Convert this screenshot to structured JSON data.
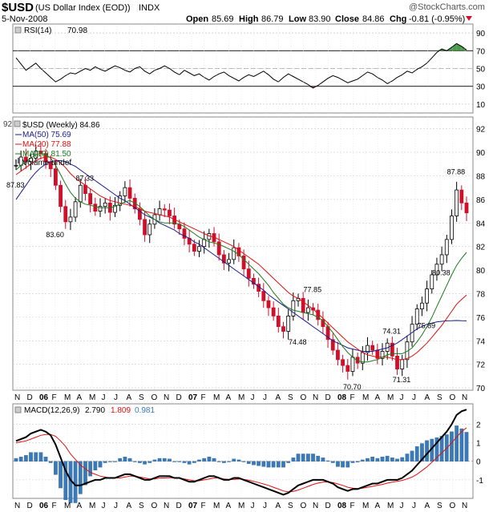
{
  "header": {
    "symbol": "$USD",
    "name": "(US Dollar Index (EOD))",
    "exchange": "INDX",
    "copyright": "@StockCharts.com",
    "date": "5-Nov-2008",
    "open_label": "Open",
    "open": "85.69",
    "high_label": "High",
    "high": "86.79",
    "low_label": "Low",
    "low": "83.90",
    "close_label": "Close",
    "close": "84.86",
    "chg_label": "Chg",
    "chg": "-0.81 (-0.95%)"
  },
  "rsi": {
    "label": "RSI(14)",
    "value": "70.98",
    "ticks": [
      "90",
      "70",
      "50",
      "30",
      "10"
    ],
    "levels": [
      70,
      30
    ],
    "color_over": "#4a9a4a",
    "color_under": "#a05050",
    "values": [
      62,
      55,
      48,
      52,
      56,
      50,
      45,
      40,
      35,
      38,
      42,
      45,
      44,
      47,
      50,
      48,
      52,
      49,
      47,
      50,
      53,
      51,
      48,
      46,
      50,
      52,
      47,
      44,
      48,
      50,
      53,
      50,
      46,
      43,
      48,
      45,
      42,
      44,
      40,
      37,
      41,
      44,
      46,
      42,
      39,
      36,
      40,
      43,
      41,
      44,
      47,
      43,
      38,
      35,
      40,
      44,
      41,
      38,
      35,
      32,
      28,
      31,
      35,
      39,
      42,
      40,
      37,
      34,
      36,
      38,
      42,
      46,
      44,
      40,
      37,
      33,
      36,
      40,
      43,
      47,
      45,
      49,
      52,
      56,
      62,
      68,
      72,
      70,
      74,
      78,
      75,
      71
    ]
  },
  "main": {
    "legend_title": "$USD (Weekly) 84.86",
    "ma50_label": "MA(50) 75.69",
    "ma20_label": "MA(20) 77.88",
    "ma10_label": "MA(10) 81.50",
    "volume_label": "Volume undef",
    "colors": {
      "ma50": "#1a1a8c",
      "ma20": "#e01010",
      "ma10": "#1a7a1a",
      "up": "#000000",
      "down": "#d0102a"
    },
    "ticks": [
      "92",
      "90",
      "88",
      "86",
      "84",
      "82",
      "80",
      "78",
      "76",
      "74",
      "72",
      "70"
    ],
    "annotations": [
      {
        "text": "87.83",
        "x": 0,
        "y": 87.83
      },
      {
        "text": "83.60",
        "x": 8,
        "y": 83.6
      },
      {
        "text": "87.33",
        "x": 14,
        "y": 87.33
      },
      {
        "text": "77.85",
        "x": 60,
        "y": 77.85
      },
      {
        "text": "74.48",
        "x": 57,
        "y": 74.48
      },
      {
        "text": "70.70",
        "x": 68,
        "y": 70.7
      },
      {
        "text": "74.31",
        "x": 76,
        "y": 74.31
      },
      {
        "text": "71.31",
        "x": 78,
        "y": 71.31
      },
      {
        "text": "75.89",
        "x": 83,
        "y": 75.89
      },
      {
        "text": "80.38",
        "x": 86,
        "y": 80.38
      },
      {
        "text": "87.88",
        "x": 89,
        "y": 87.88
      }
    ]
  },
  "chart_data": {
    "type": "line",
    "title": "$USD (Weekly) 84.86",
    "ylim": [
      69.8,
      93.0
    ],
    "month_labels": [
      "N",
      "D",
      "06",
      "F",
      "M",
      "A",
      "M",
      "J",
      "J",
      "A",
      "S",
      "O",
      "N",
      "D",
      "07",
      "F",
      "M",
      "A",
      "M",
      "J",
      "J",
      "A",
      "S",
      "O",
      "N",
      "D",
      "08",
      "F",
      "M",
      "A",
      "M",
      "J",
      "J",
      "A",
      "S",
      "O",
      "N"
    ],
    "closes": [
      88.9,
      89.6,
      89.2,
      89.5,
      90.1,
      89.9,
      89.2,
      88.6,
      87.2,
      85.4,
      84.1,
      84.5,
      85.8,
      87.2,
      86.5,
      85.6,
      85.0,
      85.4,
      85.7,
      84.9,
      85.5,
      86.3,
      87.0,
      86.1,
      85.2,
      84.3,
      83.0,
      83.9,
      84.7,
      85.2,
      85.1,
      84.6,
      83.9,
      83.5,
      82.7,
      82.2,
      81.6,
      82.0,
      82.6,
      83.1,
      82.4,
      81.3,
      80.6,
      80.9,
      81.9,
      81.2,
      80.1,
      79.3,
      78.8,
      78.2,
      77.4,
      76.8,
      76.1,
      75.2,
      74.8,
      76.1,
      77.4,
      77.6,
      76.4,
      76.8,
      76.6,
      75.8,
      75.2,
      74.1,
      73.2,
      72.4,
      71.9,
      71.4,
      72.6,
      72.1,
      73.0,
      73.6,
      73.2,
      72.5,
      73.1,
      73.8,
      72.7,
      71.6,
      72.4,
      73.9,
      75.4,
      76.7,
      77.2,
      78.4,
      79.6,
      80.5,
      81.3,
      82.6,
      84.6,
      86.8,
      85.7,
      84.86
    ],
    "ma50": [
      86.0,
      86.6,
      87.2,
      87.8,
      88.3,
      88.7,
      89.0,
      89.2,
      89.3,
      89.3,
      89.2,
      89.0,
      88.8,
      88.5,
      88.2,
      87.9,
      87.6,
      87.3,
      87.0,
      86.7,
      86.4,
      86.1,
      85.9,
      85.6,
      85.3,
      85.0,
      84.7,
      84.5,
      84.3,
      84.0,
      83.8,
      83.6,
      83.4,
      83.1,
      82.9,
      82.7,
      82.4,
      82.2,
      81.9,
      81.6,
      81.3,
      81.0,
      80.7,
      80.4,
      80.1,
      79.8,
      79.5,
      79.2,
      78.9,
      78.6,
      78.3,
      77.9,
      77.6,
      77.3,
      77.0,
      76.7,
      76.4,
      76.1,
      75.8,
      75.5,
      75.2,
      74.9,
      74.6,
      74.3,
      74.0,
      73.8,
      73.6,
      73.4,
      73.3,
      73.2,
      73.1,
      73.1,
      73.1,
      73.2,
      73.3,
      73.4,
      73.6,
      73.8,
      74.1,
      74.4,
      74.7,
      75.0,
      75.2,
      75.4,
      75.5,
      75.6,
      75.65,
      75.69,
      75.7,
      75.72,
      75.7,
      75.69
    ],
    "ma20": [
      88.1,
      88.4,
      88.7,
      89.0,
      89.3,
      89.5,
      89.6,
      89.6,
      89.4,
      89.1,
      88.7,
      88.2,
      87.8,
      87.5,
      87.2,
      86.9,
      86.6,
      86.3,
      86.1,
      85.9,
      85.8,
      85.7,
      85.6,
      85.5,
      85.4,
      85.2,
      85.0,
      84.9,
      84.8,
      84.7,
      84.6,
      84.5,
      84.3,
      84.1,
      83.9,
      83.7,
      83.5,
      83.3,
      83.1,
      82.9,
      82.8,
      82.6,
      82.4,
      82.2,
      82.0,
      81.7,
      81.4,
      81.1,
      80.8,
      80.5,
      80.1,
      79.7,
      79.3,
      78.9,
      78.5,
      78.1,
      77.8,
      77.6,
      77.3,
      77.0,
      76.7,
      76.3,
      75.9,
      75.5,
      75.1,
      74.7,
      74.3,
      73.9,
      73.6,
      73.3,
      73.0,
      72.8,
      72.7,
      72.6,
      72.6,
      72.6,
      72.5,
      72.4,
      72.4,
      72.5,
      72.7,
      73.0,
      73.4,
      73.8,
      74.3,
      74.8,
      75.3,
      75.9,
      76.5,
      77.1,
      77.5,
      77.88
    ],
    "ma10": [
      88.5,
      88.9,
      89.2,
      89.5,
      89.8,
      89.9,
      89.8,
      89.5,
      88.9,
      88.1,
      87.3,
      86.6,
      86.1,
      85.8,
      85.6,
      85.5,
      85.4,
      85.3,
      85.3,
      85.3,
      85.4,
      85.6,
      85.8,
      85.9,
      85.7,
      85.4,
      85.0,
      84.6,
      84.3,
      84.1,
      84.0,
      84.0,
      84.0,
      83.9,
      83.7,
      83.4,
      83.1,
      82.8,
      82.6,
      82.4,
      82.3,
      82.2,
      82.0,
      81.8,
      81.6,
      81.3,
      80.9,
      80.5,
      80.1,
      79.7,
      79.2,
      78.7,
      78.1,
      77.6,
      77.1,
      76.8,
      76.6,
      76.5,
      76.4,
      76.3,
      76.2,
      76.0,
      75.7,
      75.2,
      74.7,
      74.1,
      73.5,
      73.0,
      72.6,
      72.3,
      72.2,
      72.2,
      72.3,
      72.4,
      72.6,
      72.8,
      72.9,
      72.9,
      72.9,
      73.1,
      73.4,
      73.9,
      74.5,
      75.2,
      76.0,
      76.9,
      77.8,
      78.7,
      79.6,
      80.4,
      81.0,
      81.5
    ]
  },
  "macd": {
    "label": "MACD(12,26,9)",
    "macd_value": "2.790",
    "signal_value": "1.809",
    "hist_value": "0.981",
    "ticks": [
      "2",
      "1",
      "0",
      "-1"
    ],
    "colors": {
      "macd": "#000000",
      "signal": "#e01010",
      "hist": "#3a7ab8"
    },
    "macd_line": [
      1.1,
      1.2,
      1.3,
      1.5,
      1.6,
      1.7,
      1.6,
      1.4,
      0.9,
      0.2,
      -0.5,
      -1.0,
      -1.3,
      -1.3,
      -1.2,
      -1.1,
      -1.0,
      -1.0,
      -0.9,
      -0.9,
      -0.9,
      -0.8,
      -0.7,
      -0.7,
      -0.8,
      -0.9,
      -1.0,
      -1.0,
      -0.9,
      -0.8,
      -0.8,
      -0.8,
      -0.9,
      -0.9,
      -1.0,
      -1.1,
      -1.1,
      -1.0,
      -0.9,
      -0.8,
      -0.8,
      -0.9,
      -1.0,
      -1.0,
      -0.9,
      -0.9,
      -1.0,
      -1.1,
      -1.2,
      -1.3,
      -1.4,
      -1.5,
      -1.6,
      -1.7,
      -1.8,
      -1.7,
      -1.5,
      -1.3,
      -1.2,
      -1.1,
      -1.0,
      -1.0,
      -1.0,
      -1.1,
      -1.2,
      -1.4,
      -1.5,
      -1.6,
      -1.5,
      -1.5,
      -1.4,
      -1.3,
      -1.2,
      -1.2,
      -1.1,
      -1.0,
      -1.0,
      -1.0,
      -0.9,
      -0.7,
      -0.5,
      -0.2,
      0.1,
      0.4,
      0.7,
      1.0,
      1.3,
      1.6,
      2.0,
      2.5,
      2.7,
      2.79
    ],
    "signal_line": [
      1.0,
      1.05,
      1.1,
      1.2,
      1.3,
      1.4,
      1.45,
      1.45,
      1.35,
      1.1,
      0.8,
      0.4,
      0.1,
      -0.2,
      -0.4,
      -0.6,
      -0.7,
      -0.8,
      -0.85,
      -0.9,
      -0.9,
      -0.9,
      -0.85,
      -0.8,
      -0.8,
      -0.85,
      -0.9,
      -0.95,
      -0.95,
      -0.9,
      -0.9,
      -0.88,
      -0.9,
      -0.9,
      -0.95,
      -1.0,
      -1.05,
      -1.05,
      -1.0,
      -0.95,
      -0.9,
      -0.9,
      -0.95,
      -0.98,
      -0.98,
      -0.95,
      -0.98,
      -1.02,
      -1.08,
      -1.15,
      -1.22,
      -1.3,
      -1.4,
      -1.5,
      -1.6,
      -1.65,
      -1.62,
      -1.55,
      -1.45,
      -1.35,
      -1.25,
      -1.18,
      -1.12,
      -1.12,
      -1.15,
      -1.22,
      -1.3,
      -1.4,
      -1.45,
      -1.47,
      -1.45,
      -1.4,
      -1.35,
      -1.3,
      -1.25,
      -1.18,
      -1.12,
      -1.08,
      -1.03,
      -0.95,
      -0.85,
      -0.7,
      -0.5,
      -0.3,
      -0.05,
      0.2,
      0.45,
      0.7,
      1.0,
      1.3,
      1.6,
      1.809
    ]
  }
}
